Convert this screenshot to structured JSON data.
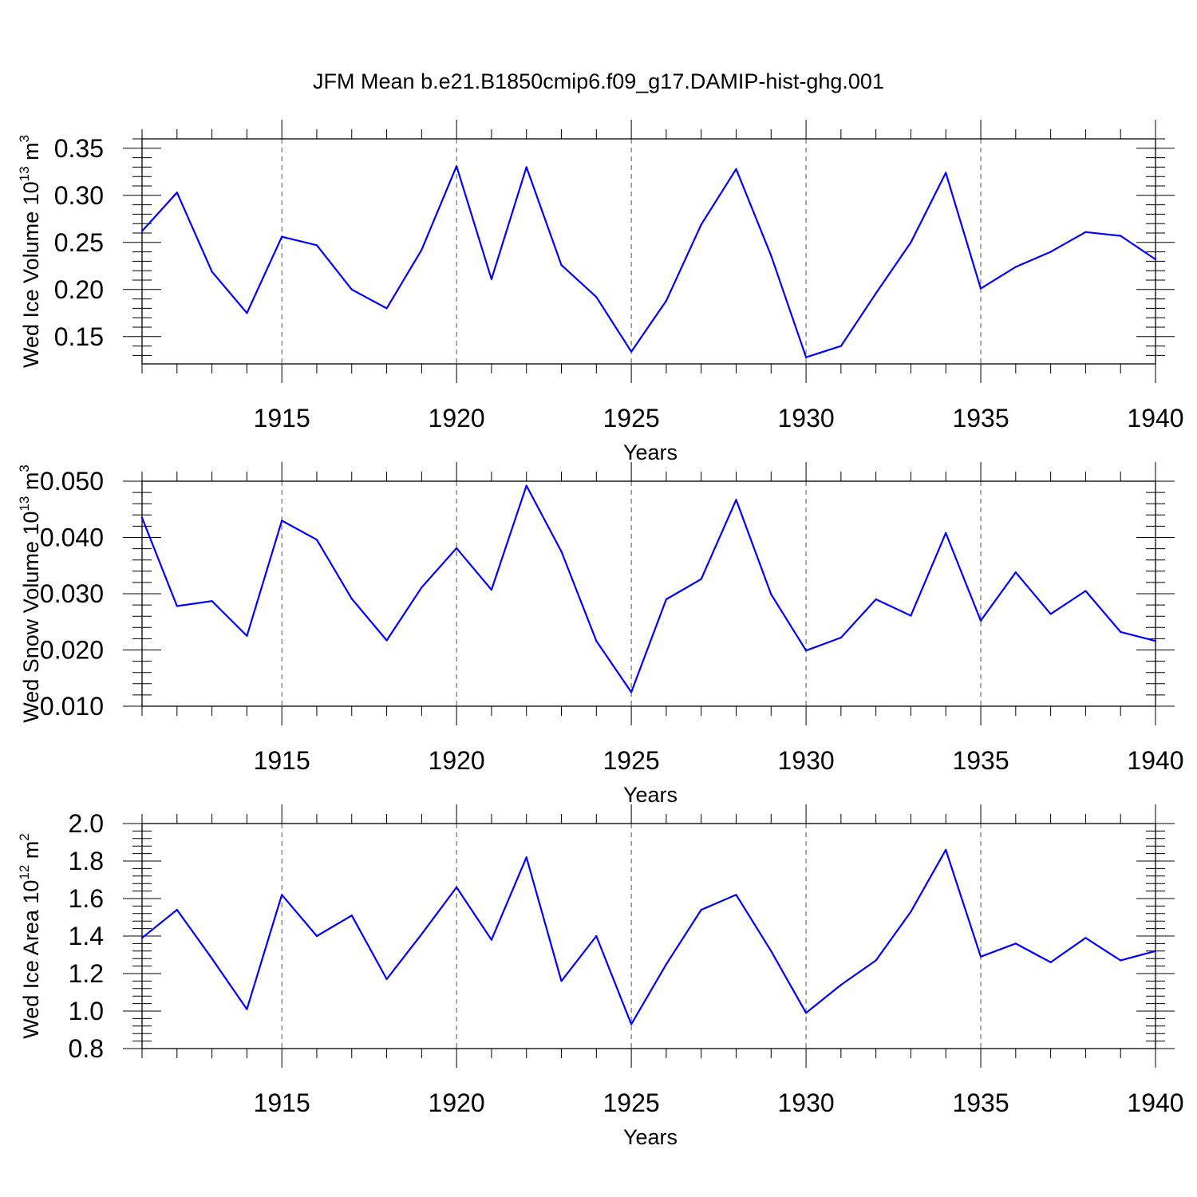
{
  "title": "JFM Mean b.e21.B1850cmip6.f09_g17.DAMIP-hist-ghg.001",
  "colors": {
    "series": "#0000ff",
    "axis": "#000000",
    "grid": "#555555"
  },
  "chart_data": [
    {
      "type": "line",
      "ylabel": "Wed Ice Volume 10",
      "ylabel_exp": "13",
      "ylabel_unit": "m",
      "ylabel_unit_exp": "3",
      "xlabel": "Years",
      "x": [
        1911,
        1912,
        1913,
        1914,
        1915,
        1916,
        1917,
        1918,
        1919,
        1920,
        1921,
        1922,
        1923,
        1924,
        1925,
        1926,
        1927,
        1928,
        1929,
        1930,
        1931,
        1932,
        1933,
        1934,
        1935,
        1936,
        1937,
        1938,
        1939,
        1940
      ],
      "values": [
        0.262,
        0.303,
        0.219,
        0.175,
        0.256,
        0.247,
        0.2,
        0.18,
        0.242,
        0.331,
        0.211,
        0.33,
        0.226,
        0.192,
        0.134,
        0.188,
        0.269,
        0.328,
        0.236,
        0.128,
        0.14,
        0.196,
        0.25,
        0.324,
        0.201,
        0.224,
        0.24,
        0.261,
        0.257,
        0.232
      ],
      "xlim": [
        1911,
        1940
      ],
      "ylim": [
        0.121,
        0.36
      ],
      "xticks": [
        1915,
        1920,
        1925,
        1930,
        1935,
        1940
      ],
      "yticks": [
        0.15,
        0.2,
        0.25,
        0.3,
        0.35
      ],
      "ytick_labels": [
        "0.15",
        "0.20",
        "0.25",
        "0.30",
        "0.35"
      ],
      "ytick_minor": 0.01,
      "grid": "vertical dashed at major x ticks"
    },
    {
      "type": "line",
      "ylabel": "Wed Snow Volume 10",
      "ylabel_exp": "13",
      "ylabel_unit": "m",
      "ylabel_unit_exp": "3",
      "xlabel": "Years",
      "x": [
        1911,
        1912,
        1913,
        1914,
        1915,
        1916,
        1917,
        1918,
        1919,
        1920,
        1921,
        1922,
        1923,
        1924,
        1925,
        1926,
        1927,
        1928,
        1929,
        1930,
        1931,
        1932,
        1933,
        1934,
        1935,
        1936,
        1937,
        1938,
        1939,
        1940
      ],
      "values": [
        0.0435,
        0.0278,
        0.0287,
        0.0225,
        0.043,
        0.0396,
        0.0291,
        0.0217,
        0.0311,
        0.0381,
        0.0307,
        0.0492,
        0.0375,
        0.0216,
        0.0125,
        0.029,
        0.0326,
        0.0467,
        0.0299,
        0.0199,
        0.0222,
        0.029,
        0.0261,
        0.0408,
        0.0252,
        0.0338,
        0.0264,
        0.0305,
        0.0232,
        0.0216
      ],
      "xlim": [
        1911,
        1940
      ],
      "ylim": [
        0.01,
        0.05
      ],
      "xticks": [
        1915,
        1920,
        1925,
        1930,
        1935,
        1940
      ],
      "yticks": [
        0.01,
        0.02,
        0.03,
        0.04,
        0.05
      ],
      "ytick_labels": [
        "0.010",
        "0.020",
        "0.030",
        "0.040",
        "0.050"
      ],
      "ytick_minor": 0.002,
      "grid": "vertical dashed at major x ticks"
    },
    {
      "type": "line",
      "ylabel": "Wed Ice Area 10",
      "ylabel_exp": "12",
      "ylabel_unit": "m",
      "ylabel_unit_exp": "2",
      "xlabel": "Years",
      "x": [
        1911,
        1912,
        1913,
        1914,
        1915,
        1916,
        1917,
        1918,
        1919,
        1920,
        1921,
        1922,
        1923,
        1924,
        1925,
        1926,
        1927,
        1928,
        1929,
        1930,
        1931,
        1932,
        1933,
        1934,
        1935,
        1936,
        1937,
        1938,
        1939,
        1940
      ],
      "values": [
        1.39,
        1.54,
        1.28,
        1.01,
        1.62,
        1.4,
        1.51,
        1.17,
        1.41,
        1.66,
        1.38,
        1.82,
        1.16,
        1.4,
        0.93,
        1.25,
        1.54,
        1.62,
        1.32,
        0.99,
        1.14,
        1.27,
        1.53,
        1.86,
        1.29,
        1.36,
        1.26,
        1.39,
        1.27,
        1.32
      ],
      "xlim": [
        1911,
        1940
      ],
      "ylim": [
        0.8,
        2.0
      ],
      "xticks": [
        1915,
        1920,
        1925,
        1930,
        1935,
        1940
      ],
      "yticks": [
        0.8,
        1.0,
        1.2,
        1.4,
        1.6,
        1.8,
        2.0
      ],
      "ytick_labels": [
        "0.8",
        "1.0",
        "1.2",
        "1.4",
        "1.6",
        "1.8",
        "2.0"
      ],
      "ytick_minor": 0.04,
      "grid": "vertical dashed at major x ticks"
    }
  ]
}
